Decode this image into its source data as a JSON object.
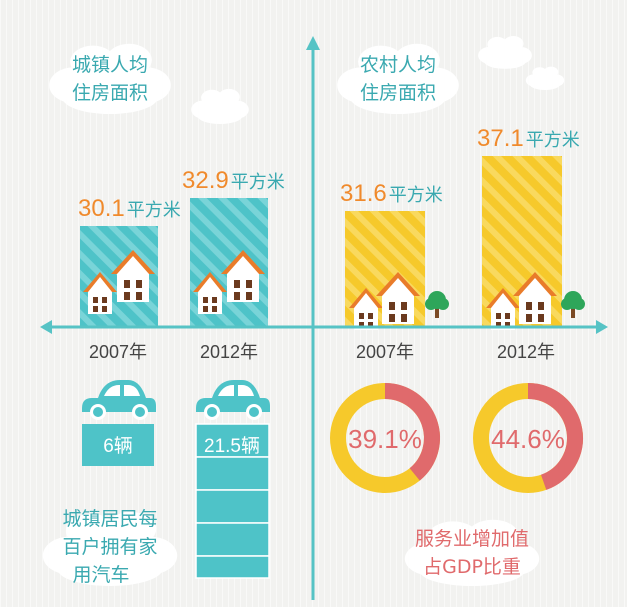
{
  "colors": {
    "teal": "#4ec3c8",
    "yellow": "#f6c92b",
    "orange": "#f08a2c",
    "red": "#e06a6c",
    "axis": "#56c3c5",
    "house_body": "#ffffff",
    "house_roof": "#e97c2a"
  },
  "urban_housing": {
    "label_line1": "城镇人均",
    "label_line2": "住房面积",
    "unit": "平方米",
    "value_2007_text": "30.1",
    "value_2012_text": "32.9"
  },
  "rural_housing": {
    "label_line1": "农村人均",
    "label_line2": "住房面积",
    "unit": "平方米",
    "value_2007_text": "31.6",
    "value_2012_text": "37.1"
  },
  "years": {
    "left_2007": "2007年",
    "left_2012": "2012年",
    "right_2007": "2007年",
    "right_2012": "2012年"
  },
  "cars": {
    "value_2007_text": "6辆",
    "value_2012_text": "21.5辆",
    "label_line1": "城镇居民每",
    "label_line2": "百户拥有家",
    "label_line3": "用汽车"
  },
  "services": {
    "pct_2007_text": "39.1%",
    "pct_2012_text": "44.6%",
    "label_line1": "服务业增加值",
    "label_line2": "占GDP比重"
  },
  "chart_data": [
    {
      "type": "bar",
      "title": "城镇人均住房面积",
      "categories": [
        "2007年",
        "2012年"
      ],
      "values": [
        30.1,
        32.9
      ],
      "unit": "平方米",
      "ylim": [
        0,
        40
      ]
    },
    {
      "type": "bar",
      "title": "农村人均住房面积",
      "categories": [
        "2007年",
        "2012年"
      ],
      "values": [
        31.6,
        37.1
      ],
      "unit": "平方米",
      "ylim": [
        0,
        40
      ]
    },
    {
      "type": "bar",
      "title": "城镇居民每百户拥有家用汽车",
      "categories": [
        "2007年",
        "2012年"
      ],
      "values": [
        6,
        21.5
      ],
      "unit": "辆"
    },
    {
      "type": "pie",
      "title": "服务业增加值占GDP比重",
      "categories": [
        "2007年",
        "2012年"
      ],
      "values": [
        39.1,
        44.6
      ],
      "unit": "%"
    }
  ]
}
